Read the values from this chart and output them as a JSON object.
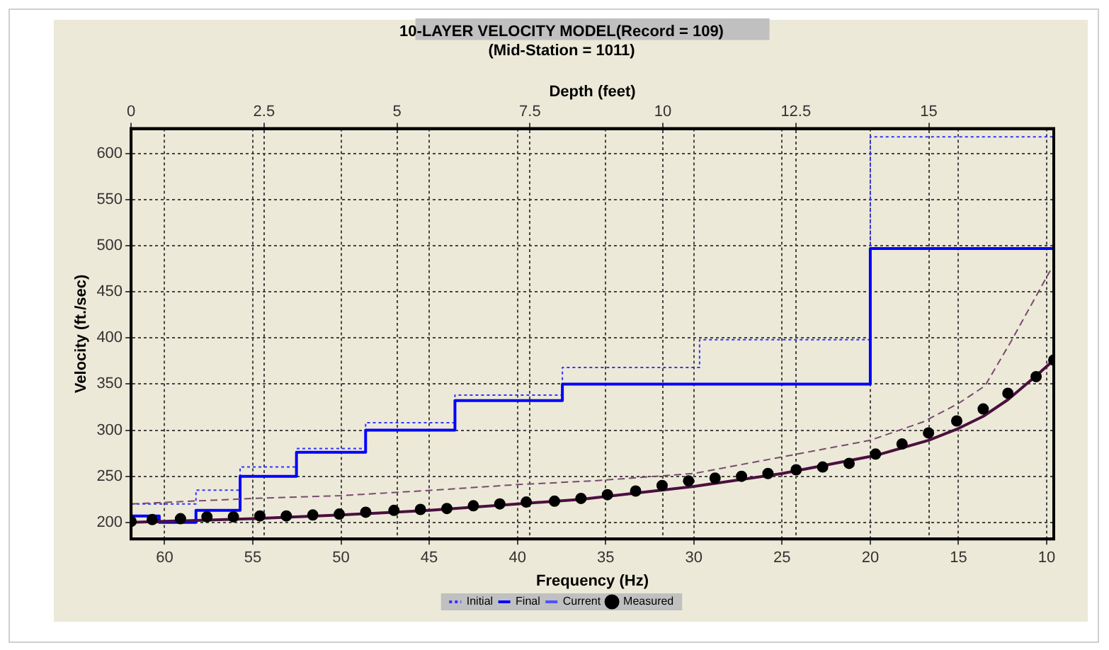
{
  "chart_data": {
    "type": "line",
    "title": "10-LAYER VELOCITY MODEL(Record = 109)",
    "subtitle": "(Mid-Station = 1011)",
    "xlabel": "Frequency (Hz)",
    "ylabel": "Velocity (ft./sec)",
    "x2label": "Depth (feet)",
    "xlim": [
      61.9,
      9.6
    ],
    "xticks": [
      60,
      55,
      50,
      45,
      40,
      35,
      30,
      25,
      20,
      15,
      10
    ],
    "x2lim": [
      0,
      17.35
    ],
    "x2ticks": [
      0,
      2.5,
      5,
      7.5,
      10,
      12.5,
      15
    ],
    "ylim": [
      182,
      627
    ],
    "yticks": [
      200,
      250,
      300,
      350,
      400,
      450,
      500,
      550,
      600
    ],
    "grid": true,
    "legend": "bottom",
    "series": [
      {
        "name": "Initial",
        "type": "step",
        "axis": "x2",
        "color": "#3333ff",
        "line_style": "dotted",
        "marker": "none",
        "x": [
          0,
          1.22,
          2.05,
          3.11,
          4.41,
          6.09,
          8.11,
          10.69,
          13.9,
          17.35
        ],
        "values": [
          220,
          235,
          260,
          280,
          308,
          338,
          368,
          398,
          618,
          618
        ]
      },
      {
        "name": "Final",
        "type": "step",
        "axis": "x2",
        "color": "#0000ff",
        "line_style": "solid",
        "marker": "none",
        "x": [
          0,
          0.53,
          1.22,
          2.05,
          3.11,
          4.41,
          6.09,
          8.11,
          13.9,
          17.35
        ],
        "values": [
          207,
          200,
          213,
          250,
          276,
          300,
          332,
          350,
          497,
          497
        ]
      },
      {
        "name": "Current",
        "type": "step",
        "axis": "x2",
        "color": "#5050ff",
        "line_style": "solid",
        "marker": "none"
      },
      {
        "type": "line",
        "color": "#7a4a70",
        "line_style": "dashed",
        "marker": "none",
        "x": [
          61.9,
          55,
          50,
          44.7,
          40,
          35.7,
          30,
          25,
          20,
          17,
          15,
          13.5,
          12,
          9.8
        ],
        "values": [
          220,
          226,
          229,
          235,
          241,
          245,
          253,
          271,
          289,
          309,
          329,
          348,
          397,
          473
        ]
      },
      {
        "type": "line",
        "color": "#4b0f3f",
        "line_style": "solid",
        "marker": "none",
        "x": [
          61.9,
          55,
          50,
          45,
          40,
          36.4,
          30,
          25,
          19.6,
          16.7,
          15.1,
          13.6,
          12.2,
          10.6,
          9.6
        ],
        "values": [
          200,
          204,
          208,
          213,
          220,
          225,
          239,
          253,
          273,
          289,
          301,
          315,
          333,
          359,
          376
        ]
      },
      {
        "name": "Measured",
        "type": "scatter",
        "color": "#000000",
        "marker": "circle",
        "x": [
          61.9,
          60.7,
          59.1,
          57.6,
          56.1,
          54.6,
          53.1,
          51.6,
          50.1,
          48.6,
          47.0,
          45.5,
          44.0,
          42.5,
          41.0,
          39.5,
          37.9,
          36.4,
          34.9,
          33.3,
          31.8,
          30.3,
          28.8,
          27.3,
          25.8,
          24.2,
          22.7,
          21.2,
          19.7,
          18.2,
          16.7,
          15.1,
          13.6,
          12.2,
          10.6,
          9.6
        ],
        "values": [
          201,
          203,
          204,
          206,
          206,
          207,
          207,
          208,
          209,
          211,
          213,
          214,
          215,
          218,
          220,
          222,
          223,
          226,
          230,
          234,
          240,
          245,
          248,
          250,
          253,
          257,
          260,
          264,
          274,
          285,
          297,
          310,
          323,
          340,
          358,
          376
        ]
      }
    ]
  }
}
